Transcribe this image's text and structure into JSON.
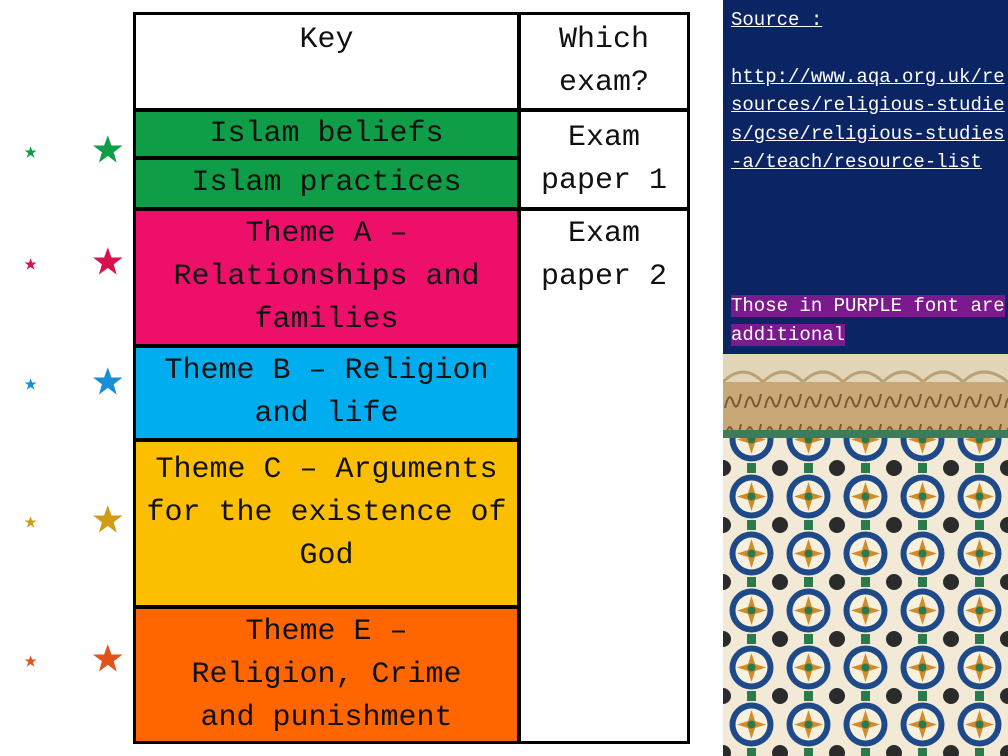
{
  "key_table": {
    "header": {
      "key": "Key",
      "exam": "Which exam?"
    },
    "rows": [
      {
        "topic": "Islam beliefs",
        "color": "#0f9d48"
      },
      {
        "topic": "Islam practices",
        "color": "#0f9d48"
      },
      {
        "topic": "Theme A – Relationships and families",
        "color": "#ee0f6a"
      },
      {
        "topic": "Theme B – Religion and life",
        "color": "#00aeef"
      },
      {
        "topic": "Theme C – Arguments for the existence of God",
        "color": "#fbbf00"
      },
      {
        "topic": "Theme E – Religion, Crime and punishment",
        "color": "#ff6600"
      }
    ],
    "exam_papers": [
      "Exam paper 1",
      "Exam paper 2"
    ]
  },
  "icons": [
    {
      "name": "crescent-star-icon",
      "color": "#0f9d48"
    },
    {
      "name": "crescent-star-icon",
      "color": "#d9114e"
    },
    {
      "name": "crescent-star-icon",
      "color": "#1b8fd6"
    },
    {
      "name": "crescent-star-icon",
      "color": "#d19b12"
    },
    {
      "name": "crescent-star-icon",
      "color": "#e2521b"
    }
  ],
  "side_panel": {
    "source_label": "Source :",
    "source_url": "http://www.aqa.org.uk/resources/religious-studies/gcse/religious-studies-a/teach/resource-list",
    "note": "Those in PURPLE font are additional",
    "background": "#0b2463",
    "note_highlight": "#7a1a8c"
  }
}
